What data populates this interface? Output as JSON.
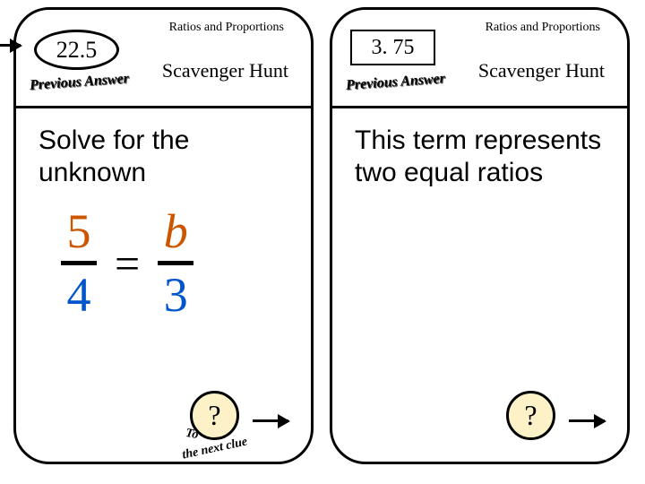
{
  "cards": [
    {
      "answer_value": "22.5",
      "answer_shape": "oval",
      "prev_answer_label": "Previous Answer",
      "topic": "Ratios and Proportions",
      "hunt_label": "Scavenger Hunt",
      "prompt": "Solve for the unknown",
      "has_equation": true,
      "equation": {
        "left_num": "5",
        "left_den": "4",
        "right_num": "b",
        "right_den": "3",
        "num_color": "#cc5500",
        "den_color": "#0055cc"
      },
      "question_mark": "?",
      "next_clue_top": "To",
      "next_clue_bottom": "the next clue",
      "show_next_clue_label": true,
      "show_incoming_arrow": true
    },
    {
      "answer_value": "3. 75",
      "answer_shape": "box",
      "prev_answer_label": "Previous Answer",
      "topic": "Ratios and Proportions",
      "hunt_label": "Scavenger Hunt",
      "prompt": "This term represents two equal ratios",
      "has_equation": false,
      "question_mark": "?",
      "show_next_clue_label": false,
      "show_incoming_arrow": false
    }
  ],
  "style": {
    "card_border_color": "#000000",
    "card_bg": "#ffffff",
    "question_circle_bg": "#fdf1c8"
  }
}
